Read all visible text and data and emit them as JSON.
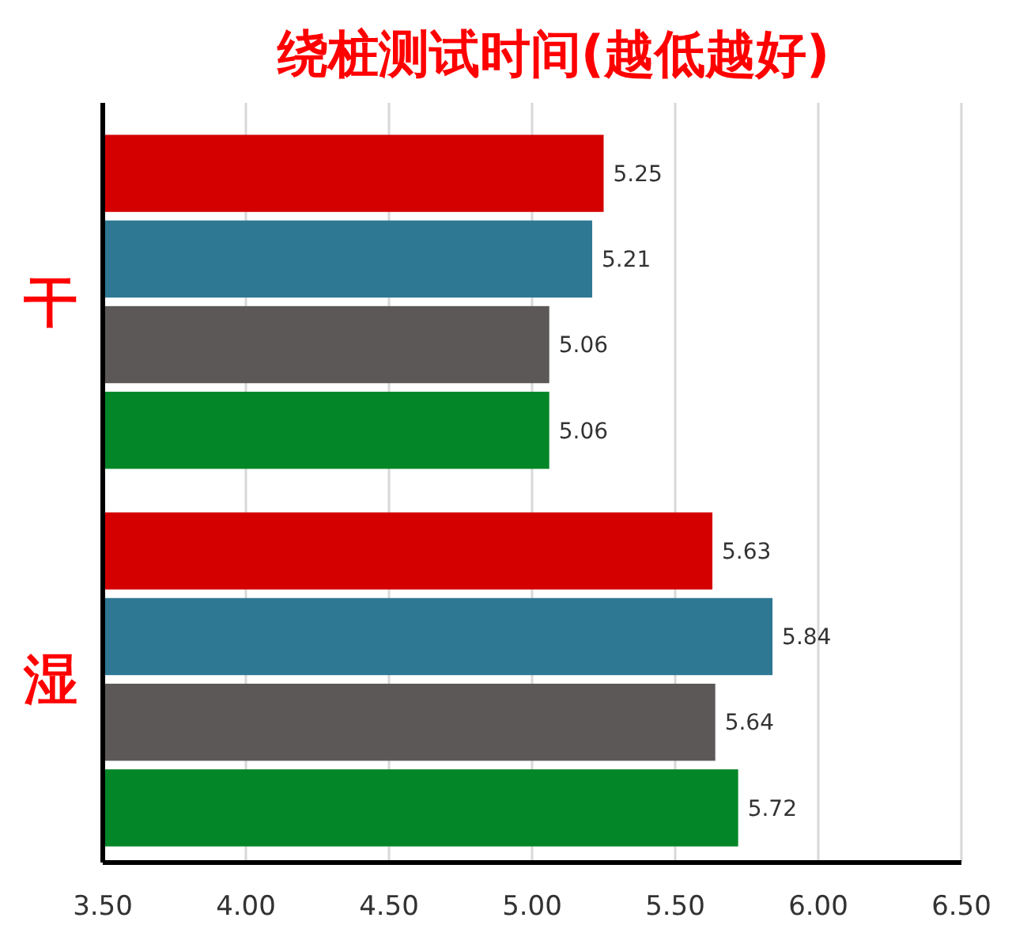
{
  "chart_data": {
    "type": "bar",
    "orientation": "horizontal",
    "title": "绕桩测试时间(越低越好)",
    "categories": [
      "干",
      "湿"
    ],
    "series": [
      {
        "color": "#d40000",
        "values": [
          5.25,
          5.63
        ]
      },
      {
        "color": "#2e7894",
        "values": [
          5.21,
          5.84
        ]
      },
      {
        "color": "#5c5858",
        "values": [
          5.06,
          5.64
        ]
      },
      {
        "color": "#038627",
        "values": [
          5.06,
          5.72
        ]
      }
    ],
    "xlim": [
      3.5,
      6.5
    ],
    "xticks": [
      {
        "value": 3.5,
        "label": "3.50"
      },
      {
        "value": 4,
        "label": "4.00"
      },
      {
        "value": 4.5,
        "label": "4.50"
      },
      {
        "value": 5,
        "label": "5.00"
      },
      {
        "value": 5.5,
        "label": "5.50"
      },
      {
        "value": 6,
        "label": "6.00"
      },
      {
        "value": 6.5,
        "label": "6.50"
      }
    ],
    "grid": "x",
    "data_labels": true
  }
}
